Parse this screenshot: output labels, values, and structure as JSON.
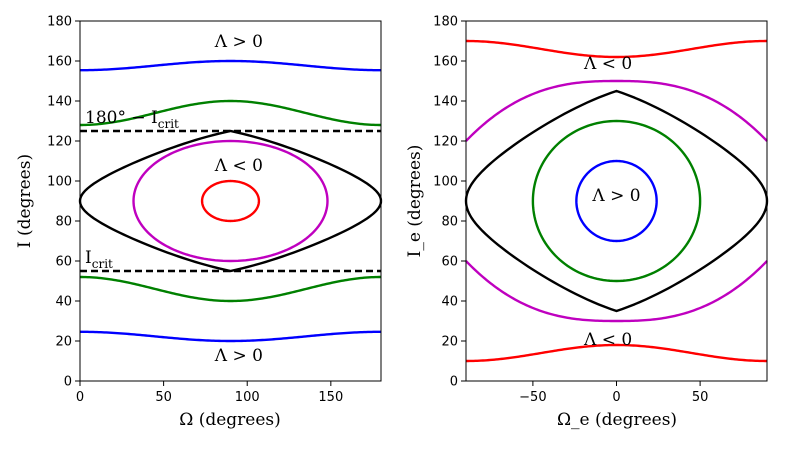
{
  "chart_data": [
    {
      "type": "line",
      "panel": "left",
      "xlabel": "Ω (degrees)",
      "ylabel": "I (degrees)",
      "xlim": [
        0,
        180
      ],
      "ylim": [
        0,
        180
      ],
      "xticks": [
        0,
        50,
        100,
        150
      ],
      "yticks": [
        0,
        20,
        40,
        60,
        80,
        100,
        120,
        140,
        160,
        180
      ],
      "annotations": [
        {
          "text": "Λ > 0",
          "x": 95,
          "y": 167
        },
        {
          "text": "Λ < 0",
          "x": 95,
          "y": 105
        },
        {
          "text": "Λ > 0",
          "x": 95,
          "y": 10
        },
        {
          "text": "180° − I_crit",
          "x": 3,
          "y": 129
        },
        {
          "text": "I_crit",
          "x": 3,
          "y": 59
        }
      ],
      "hlines": [
        {
          "name": "180° − I_crit",
          "y": 125,
          "style": "dashed",
          "color": "#000000"
        },
        {
          "name": "I_crit",
          "y": 55,
          "style": "dashed",
          "color": "#000000"
        }
      ],
      "series": [
        {
          "name": "blue-upper",
          "color": "#0000ff",
          "kind": "wave",
          "mean": 157.7,
          "amp": -2.3,
          "period": 180,
          "phase": 90
        },
        {
          "name": "green-upper",
          "color": "#008000",
          "kind": "wave",
          "mean": 134.0,
          "amp": -6.0,
          "period": 180,
          "phase": 90
        },
        {
          "name": "black-separatrix",
          "color": "#000000",
          "kind": "ellipse",
          "cx": 90,
          "cy": 90,
          "rx": 90,
          "ry": 35,
          "shape": "lens"
        },
        {
          "name": "magenta-loop",
          "color": "#bf00bf",
          "kind": "ellipse",
          "cx": 90,
          "cy": 90,
          "rx": 58,
          "ry": 30
        },
        {
          "name": "red-loop",
          "color": "#ff0000",
          "kind": "ellipse",
          "cx": 90,
          "cy": 90,
          "rx": 17,
          "ry": 10
        },
        {
          "name": "green-lower",
          "color": "#008000",
          "kind": "wave",
          "mean": 46.0,
          "amp": 6.0,
          "period": 180,
          "phase": 90
        },
        {
          "name": "blue-lower",
          "color": "#0000ff",
          "kind": "wave",
          "mean": 22.3,
          "amp": 2.3,
          "period": 180,
          "phase": 90
        }
      ]
    },
    {
      "type": "line",
      "panel": "right",
      "xlabel": "Ω_e (degrees)",
      "ylabel": "I_e (degrees)",
      "xlim": [
        -90,
        90
      ],
      "ylim": [
        0,
        180
      ],
      "xticks": [
        -50,
        0,
        50
      ],
      "yticks": [
        0,
        20,
        40,
        60,
        80,
        100,
        120,
        140,
        160,
        180
      ],
      "annotations": [
        {
          "text": "Λ < 0",
          "x": -5,
          "y": 156
        },
        {
          "text": "Λ > 0",
          "x": 0,
          "y": 90
        },
        {
          "text": "Λ < 0",
          "x": -5,
          "y": 18
        }
      ],
      "series": [
        {
          "name": "red-upper",
          "color": "#ff0000",
          "kind": "wave",
          "mean": 166.0,
          "amp": 4.0,
          "period": 180,
          "phase": 0
        },
        {
          "name": "magenta-upper",
          "color": "#bf00bf",
          "kind": "arc",
          "peak": 150,
          "edge": 120,
          "width": 90
        },
        {
          "name": "black-separatrix",
          "color": "#000000",
          "kind": "ellipse",
          "cx": 0,
          "cy": 90,
          "rx": 90,
          "ry": 55,
          "shape": "lens"
        },
        {
          "name": "green-loop",
          "color": "#008000",
          "kind": "ellipse",
          "cx": 0,
          "cy": 90,
          "rx": 50,
          "ry": 40
        },
        {
          "name": "blue-loop",
          "color": "#0000ff",
          "kind": "ellipse",
          "cx": 0,
          "cy": 90,
          "rx": 24,
          "ry": 20
        },
        {
          "name": "magenta-lower",
          "color": "#bf00bf",
          "kind": "arc",
          "peak": 30,
          "edge": 60,
          "width": 90
        },
        {
          "name": "red-lower",
          "color": "#ff0000",
          "kind": "wave",
          "mean": 14.0,
          "amp": -4.0,
          "period": 180,
          "phase": 0
        }
      ]
    }
  ]
}
